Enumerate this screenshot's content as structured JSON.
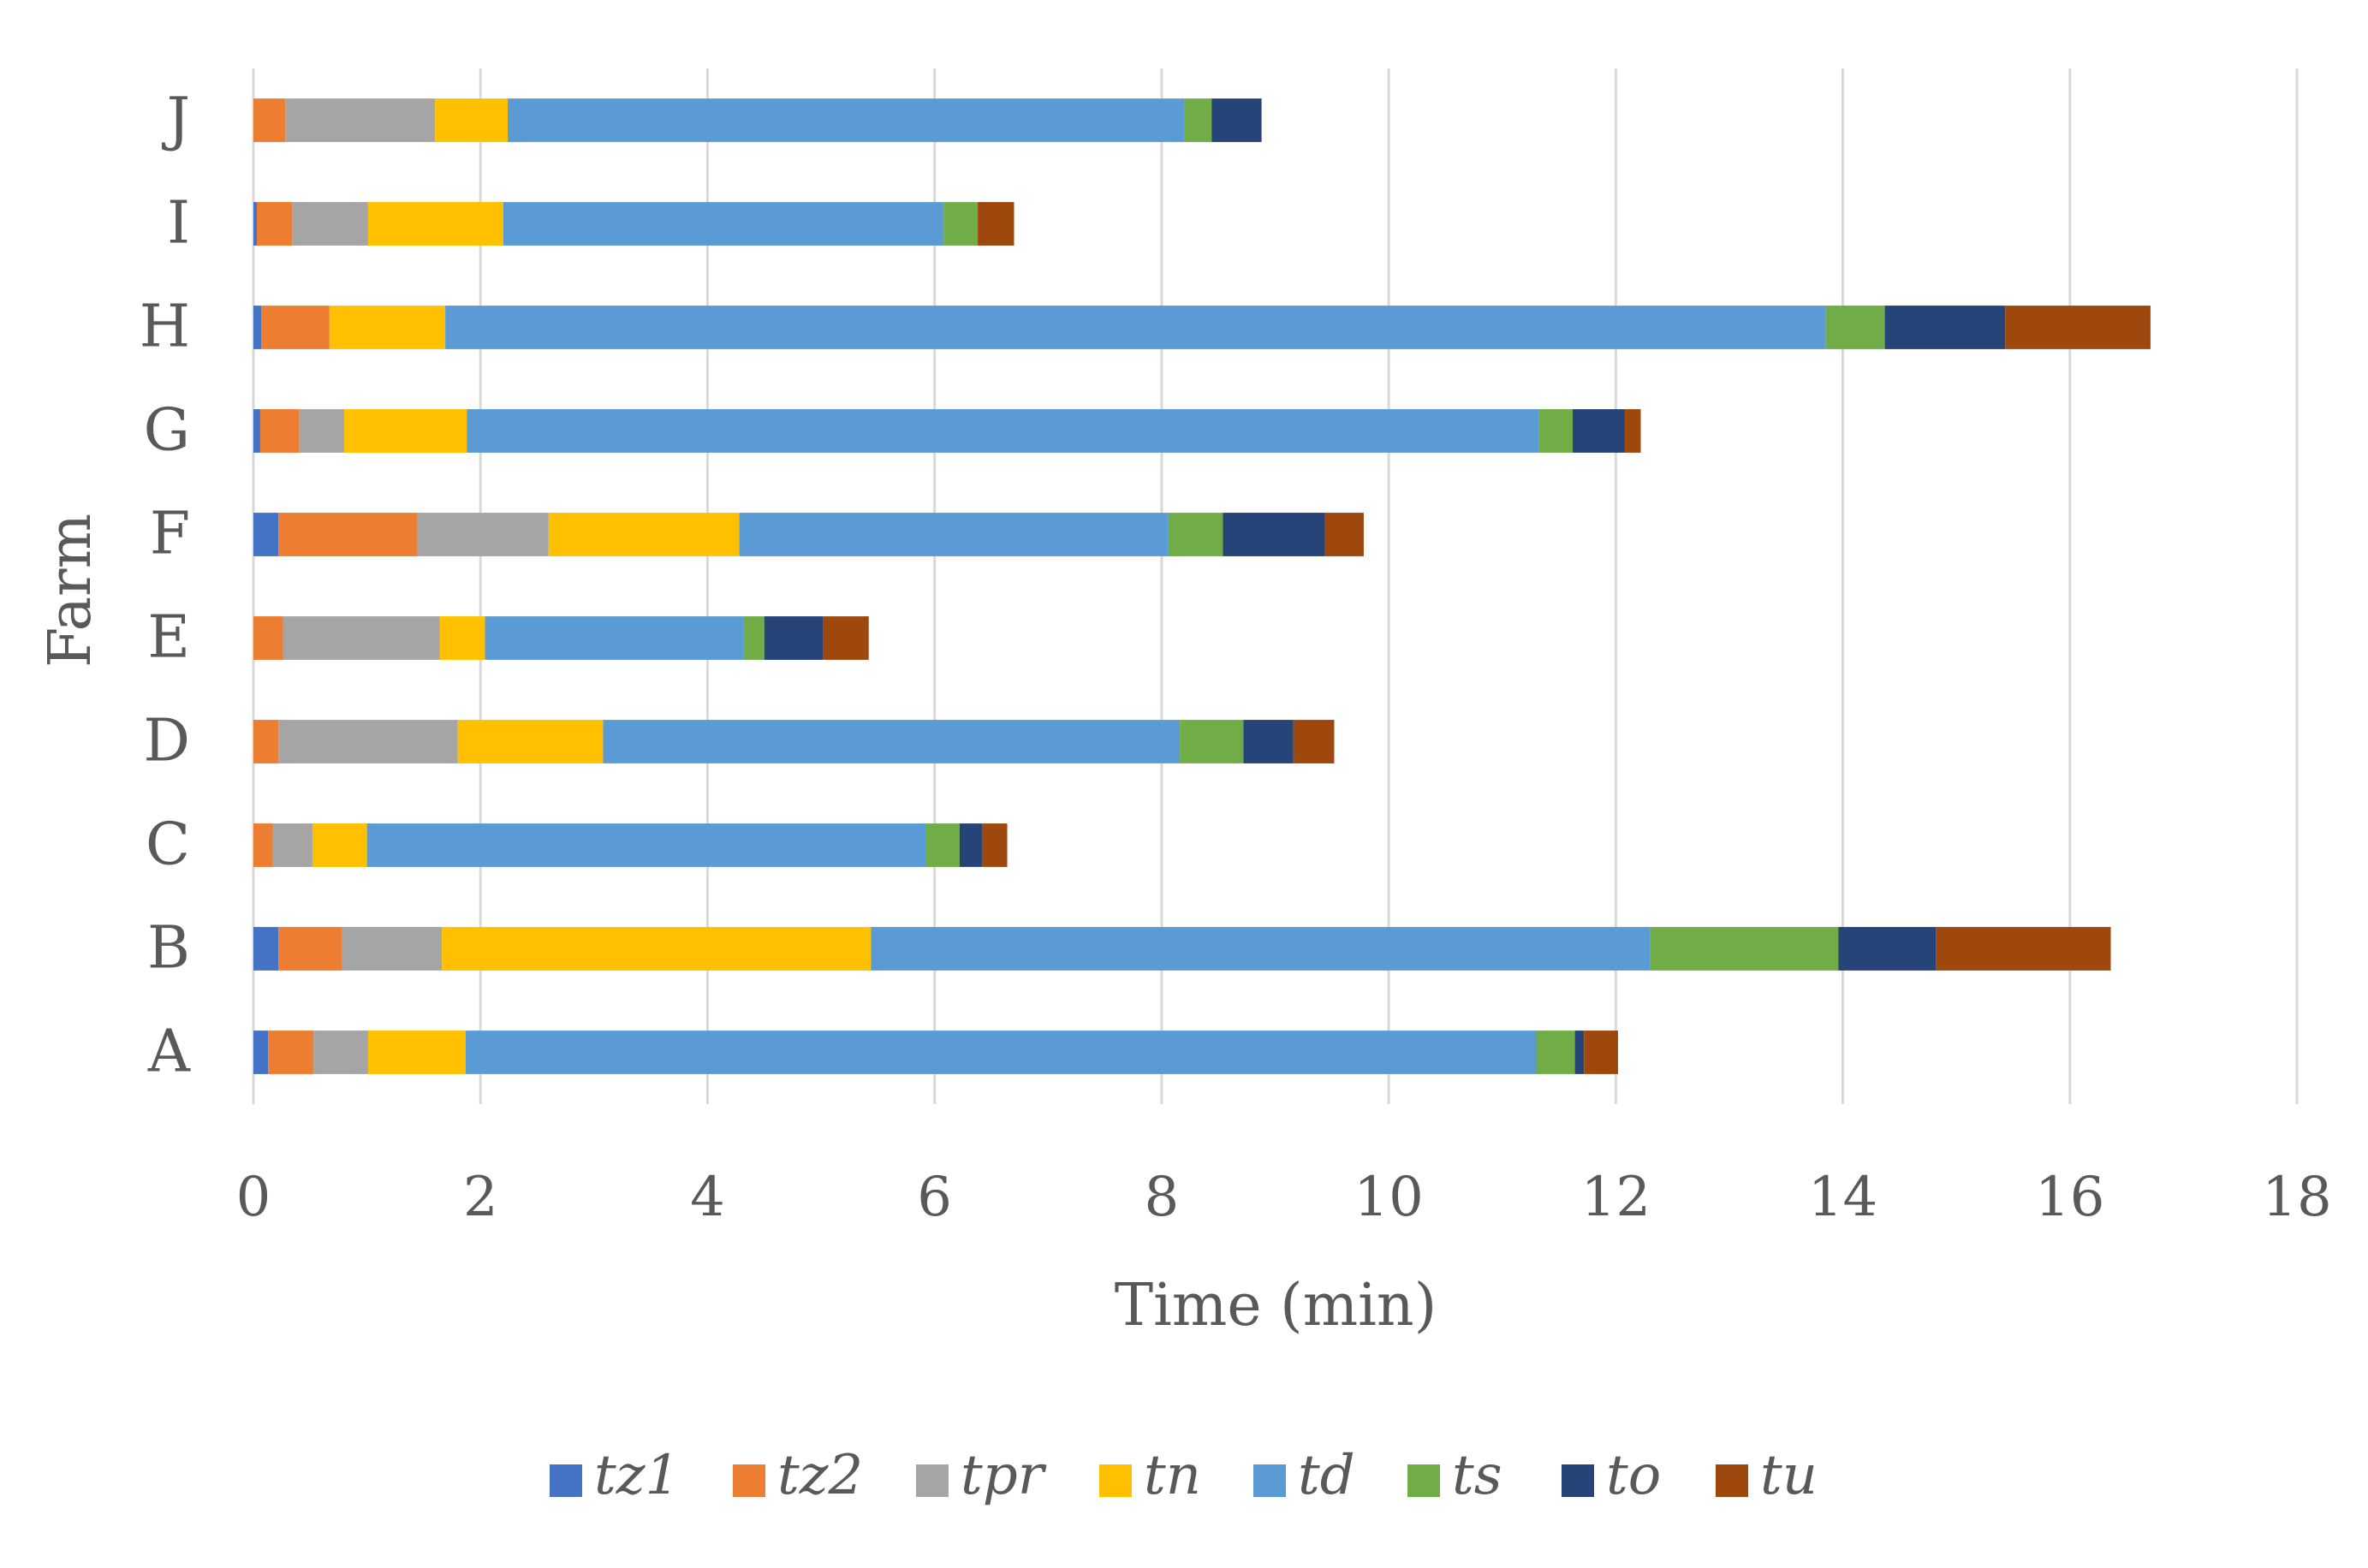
{
  "chart_data": {
    "type": "bar",
    "orientation": "horizontal",
    "stacked": true,
    "title": "",
    "xlabel": "Time (min)",
    "ylabel": "Farm",
    "xlim": [
      0,
      18
    ],
    "x_ticks": [
      0,
      2,
      4,
      6,
      8,
      10,
      12,
      14,
      16,
      18
    ],
    "grid": true,
    "legend_position": "bottom",
    "categories": [
      "A",
      "B",
      "C",
      "D",
      "E",
      "F",
      "G",
      "H",
      "I",
      "J"
    ],
    "series": [
      {
        "name": "tz1",
        "color": "#4472C4",
        "values": [
          0.13,
          0.22,
          0.0,
          0.0,
          0.0,
          0.22,
          0.06,
          0.07,
          0.03,
          0.0
        ]
      },
      {
        "name": "tz2",
        "color": "#ED7D31",
        "values": [
          0.4,
          0.56,
          0.17,
          0.22,
          0.26,
          1.22,
          0.34,
          0.6,
          0.31,
          0.28
        ]
      },
      {
        "name": "tpr",
        "color": "#A5A5A5",
        "values": [
          0.48,
          0.88,
          0.35,
          1.58,
          1.38,
          1.16,
          0.4,
          0.0,
          0.67,
          1.32
        ]
      },
      {
        "name": "tn",
        "color": "#FFC000",
        "values": [
          0.86,
          3.78,
          0.48,
          1.28,
          0.4,
          1.68,
          1.08,
          1.02,
          1.19,
          0.64
        ]
      },
      {
        "name": "td",
        "color": "#5B9BD5",
        "values": [
          9.43,
          6.86,
          4.92,
          5.08,
          2.28,
          3.78,
          9.44,
          12.16,
          3.88,
          5.96
        ]
      },
      {
        "name": "ts",
        "color": "#70AD47",
        "values": [
          0.34,
          1.66,
          0.3,
          0.56,
          0.18,
          0.48,
          0.3,
          0.52,
          0.3,
          0.24
        ]
      },
      {
        "name": "to",
        "color": "#264478",
        "values": [
          0.08,
          0.86,
          0.2,
          0.44,
          0.52,
          0.9,
          0.46,
          1.06,
          0.0,
          0.44
        ]
      },
      {
        "name": "tu",
        "color": "#9E480E",
        "values": [
          0.3,
          1.54,
          0.22,
          0.36,
          0.4,
          0.34,
          0.14,
          1.28,
          0.32,
          0.0
        ]
      }
    ]
  },
  "colors": {
    "axis_text": "#595959",
    "gridline": "#D9D9D9"
  }
}
